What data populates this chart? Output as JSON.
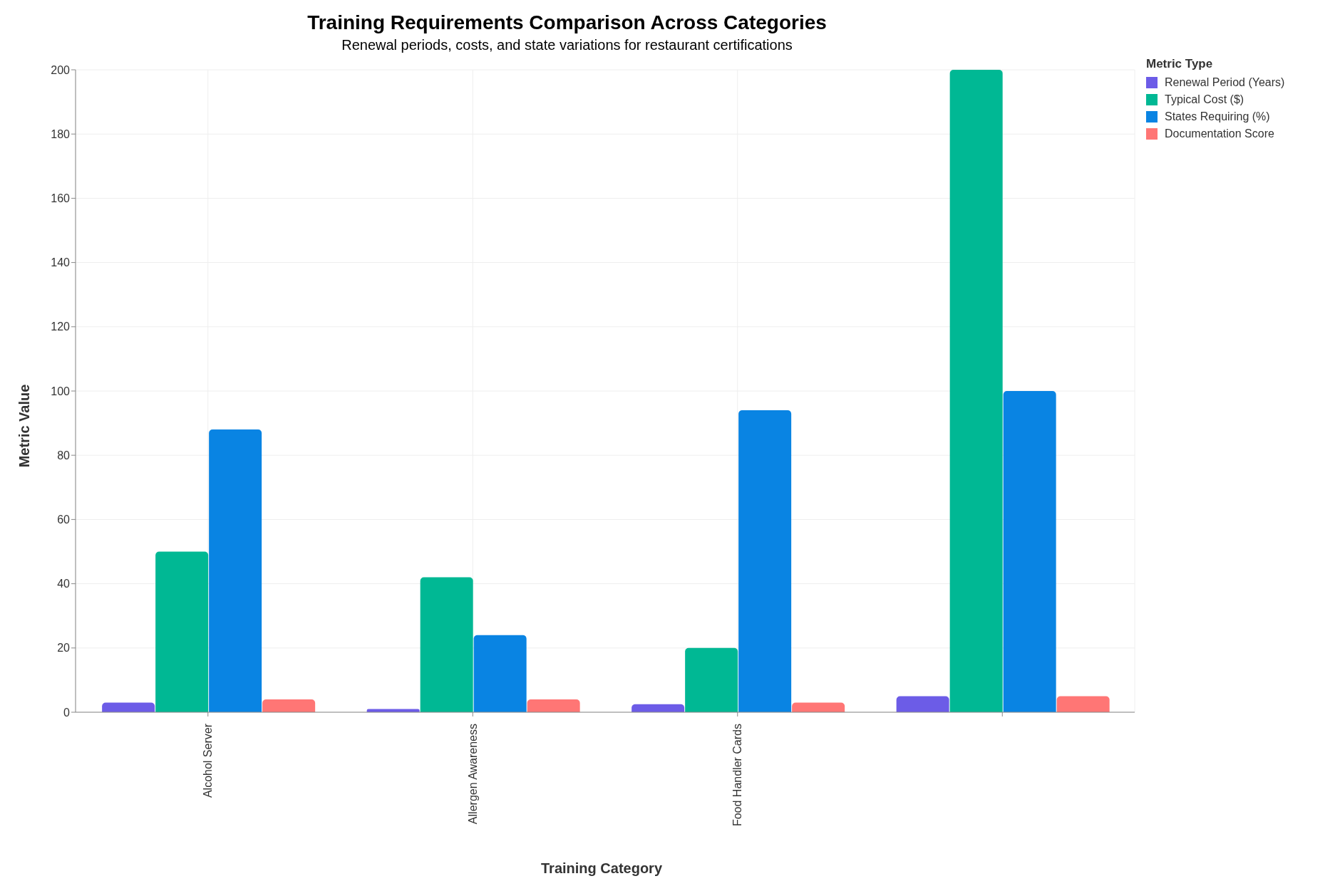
{
  "chart_data": {
    "type": "bar",
    "title": "Training Requirements Comparison Across Categories",
    "subtitle": "Renewal periods, costs, and state variations for restaurant certifications",
    "xlabel": "Training Category",
    "ylabel": "Metric Value",
    "legend_title": "Metric Type",
    "categories": [
      "Alcohol Server",
      "Allergen Awareness",
      "Food Handler Cards",
      null
    ],
    "series": [
      {
        "name": "Renewal Period (Years)",
        "color": "#6c5ce7",
        "values": [
          3,
          1,
          2.5,
          5
        ]
      },
      {
        "name": "Typical Cost ($)",
        "color": "#00b894",
        "values": [
          50,
          42,
          20,
          200
        ]
      },
      {
        "name": "States Requiring (%)",
        "color": "#0984e3",
        "values": [
          88,
          24,
          94,
          100
        ]
      },
      {
        "name": "Documentation Score",
        "color": "#ff7675",
        "values": [
          4,
          4,
          3,
          5
        ]
      }
    ],
    "ylim": [
      0,
      200
    ],
    "yticks": [
      0,
      20,
      40,
      60,
      80,
      100,
      120,
      140,
      160,
      180,
      200
    ],
    "grid": true,
    "legend": "top right"
  }
}
